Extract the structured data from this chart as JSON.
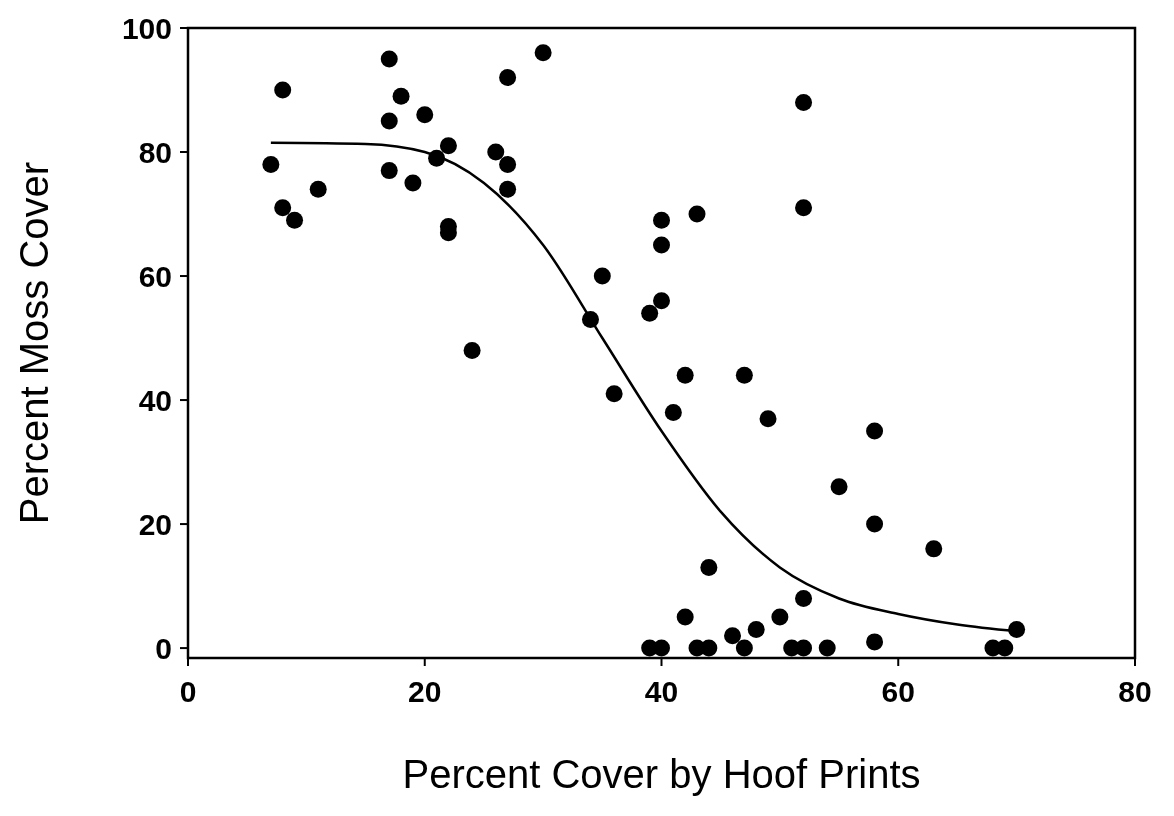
{
  "chart_data": {
    "type": "scatter",
    "xlabel": "Percent Cover by Hoof Prints",
    "ylabel": "Percent Moss Cover",
    "xlim": [
      0,
      80
    ],
    "xticks": [
      0,
      20,
      40,
      60,
      80
    ],
    "ylim": [
      -1.6,
      100
    ],
    "yticks": [
      0,
      20,
      40,
      60,
      80,
      100
    ],
    "grid": false,
    "marker": "circle",
    "series": [
      {
        "color": "#000000",
        "x": [
          7,
          8,
          8,
          9,
          11,
          17,
          17,
          17,
          18,
          19,
          20,
          21,
          22,
          22,
          22,
          24,
          26,
          27,
          27,
          27,
          30,
          34,
          35,
          36,
          39,
          39,
          40,
          40,
          40,
          40,
          41,
          42,
          42,
          43,
          43,
          44,
          44,
          46,
          47,
          47,
          48,
          49,
          50,
          51,
          52,
          52,
          52,
          52,
          54,
          55,
          58,
          58,
          58,
          63,
          68,
          69,
          70
        ],
        "values": [
          78,
          90,
          71,
          69,
          74,
          95,
          85,
          77,
          89,
          75,
          86,
          79,
          81,
          68,
          67,
          48,
          80,
          92,
          78,
          74,
          96,
          53,
          60,
          41,
          54,
          0,
          0,
          69,
          65,
          56,
          38,
          44,
          5,
          70,
          0,
          0,
          13,
          2,
          44,
          0,
          3,
          37,
          5,
          0,
          88,
          71,
          8,
          0,
          0,
          26,
          35,
          20,
          1,
          16,
          0,
          0,
          3
        ]
      },
      {
        "type": "line",
        "color": "#000000",
        "marker": "none",
        "line_style": "solid",
        "x": [
          7,
          15,
          20,
          25,
          30,
          35,
          40,
          45,
          50,
          55,
          60,
          65,
          70
        ],
        "values": [
          81.5,
          81.3,
          80,
          75,
          65,
          50,
          35,
          22,
          13,
          8,
          5.5,
          3.8,
          2.7
        ]
      }
    ]
  }
}
